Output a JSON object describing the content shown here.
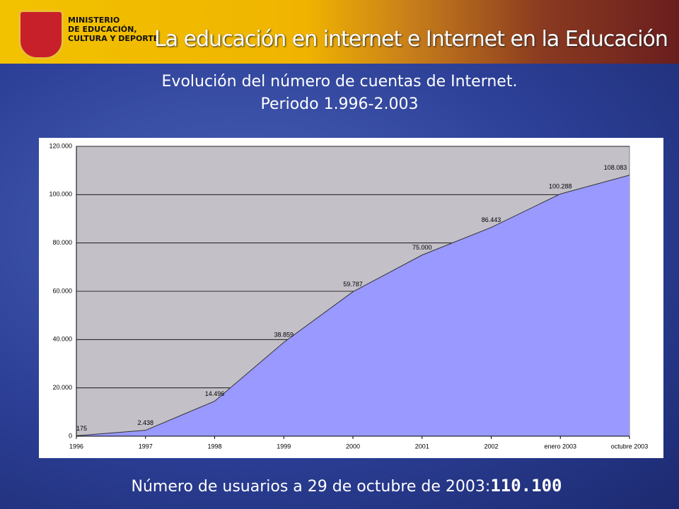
{
  "header": {
    "ministry": [
      "MINISTERIO",
      "DE EDUCACIÓN,",
      "CULTURA Y DEPORTE"
    ],
    "banner": "La educación en internet e Internet en la Educación"
  },
  "footer": {
    "text": "Número de usuarios a 29 de octubre de 2003:",
    "value": "110.100"
  },
  "chart_data": {
    "type": "area",
    "title": "Evolución del número de cuentas de Internet.",
    "subtitle": "Periodo 1.996-2.003",
    "categories": [
      "1996",
      "1997",
      "1998",
      "1999",
      "2000",
      "2001",
      "2002",
      "enero 2003",
      "octubre 2003"
    ],
    "values": [
      175,
      2438,
      14496,
      38859,
      59787,
      75000,
      86443,
      100288,
      108083
    ],
    "value_labels": [
      "175",
      "2.438",
      "14.496",
      "38.859",
      "59.787",
      "75.000",
      "86.443",
      "100.288",
      "108.083"
    ],
    "color": "#9999ff",
    "ylim": [
      0,
      120000
    ],
    "yticks": [
      0,
      {
        "value": 20000,
        "label": "20.000"
      },
      {
        "value": 40000,
        "label": "40.000"
      },
      {
        "value": 60000,
        "label": "60.000"
      },
      {
        "value": 80000,
        "label": "80.000"
      },
      {
        "value": 100000,
        "label": "100.000"
      },
      {
        "value": 120000,
        "label": "120.000"
      }
    ],
    "grid": true
  }
}
